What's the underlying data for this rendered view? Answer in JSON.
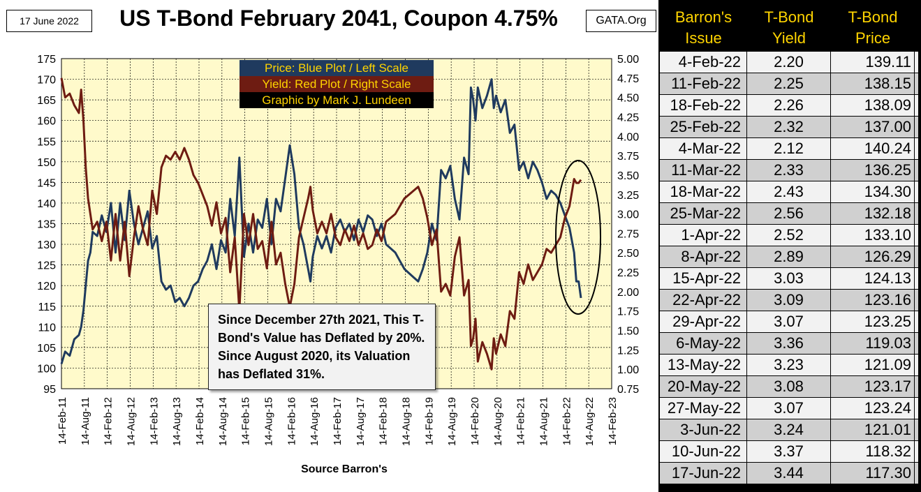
{
  "header": {
    "date": "17 June 2022",
    "title": "US T-Bond February 2041, Coupon 4.75%",
    "source_site": "GATA.Org"
  },
  "legend": {
    "price": "Price:  Blue Plot / Left Scale",
    "yield": "Yield:  Red Plot / Right Scale",
    "credit": "Graphic by Mark J. Lundeen"
  },
  "note": {
    "text": "Since December 27th 2021, This T-Bond's Value has Deflated by 20%.  Since August 2020, its Valuation has Deflated 31%."
  },
  "footer": {
    "source": "Source Barron's"
  },
  "colors": {
    "price": "#1f3a5e",
    "yield": "#6e1c12",
    "plot_bg": "#fffacb",
    "legend_text": "#ffd400"
  },
  "chart_data": {
    "type": "line",
    "title": "US T-Bond February 2041, Coupon 4.75%",
    "xlabel": "Source Barron's",
    "ylabel_left": "Price",
    "ylabel_right": "Yield",
    "ylim_left": [
      95,
      175
    ],
    "ylim_right": [
      0.75,
      5.0
    ],
    "y_ticks_left": [
      "95",
      "100",
      "105",
      "110",
      "115",
      "120",
      "125",
      "130",
      "135",
      "140",
      "145",
      "150",
      "155",
      "160",
      "165",
      "170",
      "175"
    ],
    "y_ticks_right": [
      "0.75",
      "1.00",
      "1.25",
      "1.50",
      "1.75",
      "2.00",
      "2.25",
      "2.50",
      "2.75",
      "3.00",
      "3.25",
      "3.50",
      "3.75",
      "4.00",
      "4.25",
      "4.50",
      "4.75",
      "5.00"
    ],
    "x_ticks": [
      "14-Feb-11",
      "14-Aug-11",
      "14-Feb-12",
      "14-Aug-12",
      "14-Feb-13",
      "14-Aug-13",
      "14-Feb-14",
      "14-Aug-14",
      "14-Feb-15",
      "14-Aug-15",
      "14-Feb-16",
      "14-Aug-16",
      "14-Feb-17",
      "14-Aug-17",
      "14-Feb-18",
      "14-Aug-18",
      "14-Feb-19",
      "14-Aug-19",
      "14-Feb-20",
      "14-Aug-20",
      "14-Feb-21",
      "14-Aug-21",
      "14-Feb-22",
      "14-Aug-22",
      "14-Feb-23"
    ],
    "x_range": [
      2011.12,
      2023.12
    ],
    "series": [
      {
        "name": "Price",
        "axis": "left",
        "x": [
          2011.12,
          2011.2,
          2011.3,
          2011.4,
          2011.5,
          2011.55,
          2011.6,
          2011.65,
          2011.7,
          2011.75,
          2011.8,
          2011.9,
          2012.0,
          2012.1,
          2012.2,
          2012.3,
          2012.4,
          2012.5,
          2012.6,
          2012.7,
          2012.8,
          2012.9,
          2013.0,
          2013.1,
          2013.2,
          2013.3,
          2013.4,
          2013.5,
          2013.6,
          2013.7,
          2013.8,
          2013.9,
          2014.0,
          2014.1,
          2014.2,
          2014.3,
          2014.4,
          2014.5,
          2014.6,
          2014.7,
          2014.8,
          2014.9,
          2015.0,
          2015.1,
          2015.2,
          2015.3,
          2015.4,
          2015.5,
          2015.6,
          2015.7,
          2015.8,
          2015.9,
          2016.0,
          2016.1,
          2016.2,
          2016.3,
          2016.4,
          2016.5,
          2016.55,
          2016.6,
          2016.7,
          2016.8,
          2016.9,
          2017.0,
          2017.1,
          2017.2,
          2017.3,
          2017.4,
          2017.5,
          2017.6,
          2017.7,
          2017.8,
          2017.9,
          2018.0,
          2018.1,
          2018.2,
          2018.3,
          2018.4,
          2018.5,
          2018.6,
          2018.7,
          2018.8,
          2018.9,
          2019.0,
          2019.1,
          2019.2,
          2019.3,
          2019.4,
          2019.5,
          2019.6,
          2019.7,
          2019.8,
          2019.9,
          2020.0,
          2020.05,
          2020.1,
          2020.15,
          2020.2,
          2020.3,
          2020.4,
          2020.5,
          2020.55,
          2020.6,
          2020.7,
          2020.8,
          2020.9,
          2021.0,
          2021.1,
          2021.2,
          2021.3,
          2021.4,
          2021.5,
          2021.6,
          2021.7,
          2021.8,
          2021.9,
          2022.0,
          2022.1,
          2022.2,
          2022.3,
          2022.35,
          2022.4,
          2022.45
        ],
        "values": [
          101,
          104,
          103,
          107,
          108,
          110,
          114,
          120,
          126,
          128,
          133,
          132,
          137,
          133,
          140,
          128,
          140,
          131,
          143,
          135,
          130,
          134,
          138,
          129,
          132,
          121,
          119,
          120,
          116,
          117,
          115,
          117,
          120,
          121,
          124,
          126,
          130,
          124,
          131,
          128,
          141,
          132,
          151,
          127,
          135,
          128,
          136,
          134,
          141,
          130,
          141,
          138,
          146,
          154,
          147,
          134,
          130,
          124,
          121,
          127,
          132,
          129,
          132,
          128,
          134,
          136,
          133,
          135,
          131,
          136,
          133,
          137,
          136,
          132,
          135,
          130,
          129,
          128,
          126,
          124,
          123,
          122,
          121,
          124,
          128,
          135,
          131,
          148,
          146,
          149,
          141,
          136,
          151,
          147,
          168,
          165,
          160,
          168,
          163,
          166,
          170,
          163,
          166,
          162,
          165,
          157,
          159,
          148,
          150,
          146,
          150,
          148,
          145,
          141,
          143,
          142,
          140,
          137,
          134,
          128,
          121,
          121,
          117
        ]
      },
      {
        "name": "Yield",
        "axis": "right",
        "x": [
          2011.12,
          2011.2,
          2011.3,
          2011.4,
          2011.5,
          2011.55,
          2011.6,
          2011.65,
          2011.7,
          2011.75,
          2011.8,
          2011.9,
          2012.0,
          2012.1,
          2012.2,
          2012.3,
          2012.4,
          2012.5,
          2012.6,
          2012.7,
          2012.8,
          2012.9,
          2013.0,
          2013.1,
          2013.2,
          2013.3,
          2013.4,
          2013.5,
          2013.6,
          2013.7,
          2013.8,
          2013.9,
          2014.0,
          2014.1,
          2014.2,
          2014.3,
          2014.4,
          2014.5,
          2014.6,
          2014.7,
          2014.8,
          2014.9,
          2015.0,
          2015.1,
          2015.2,
          2015.3,
          2015.4,
          2015.5,
          2015.6,
          2015.7,
          2015.8,
          2015.9,
          2016.0,
          2016.1,
          2016.2,
          2016.3,
          2016.4,
          2016.5,
          2016.55,
          2016.6,
          2016.7,
          2016.8,
          2016.9,
          2017.0,
          2017.1,
          2017.2,
          2017.3,
          2017.4,
          2017.5,
          2017.6,
          2017.7,
          2017.8,
          2017.9,
          2018.0,
          2018.1,
          2018.2,
          2018.3,
          2018.4,
          2018.5,
          2018.6,
          2018.7,
          2018.8,
          2018.9,
          2019.0,
          2019.1,
          2019.2,
          2019.3,
          2019.4,
          2019.5,
          2019.6,
          2019.7,
          2019.8,
          2019.9,
          2020.0,
          2020.05,
          2020.1,
          2020.15,
          2020.2,
          2020.3,
          2020.4,
          2020.5,
          2020.55,
          2020.6,
          2020.7,
          2020.8,
          2020.9,
          2021.0,
          2021.1,
          2021.2,
          2021.3,
          2021.4,
          2021.5,
          2021.6,
          2021.7,
          2021.8,
          2021.9,
          2022.0,
          2022.1,
          2022.2,
          2022.3,
          2022.35,
          2022.4,
          2022.45
        ],
        "values": [
          4.75,
          4.5,
          4.55,
          4.4,
          4.3,
          4.6,
          4.2,
          3.6,
          3.2,
          3.0,
          2.8,
          2.9,
          2.65,
          2.9,
          2.4,
          3.0,
          2.4,
          2.9,
          2.2,
          2.7,
          3.1,
          2.8,
          2.6,
          3.3,
          3.0,
          3.6,
          3.75,
          3.7,
          3.8,
          3.7,
          3.85,
          3.7,
          3.5,
          3.4,
          3.25,
          3.1,
          2.85,
          3.15,
          2.75,
          2.95,
          2.25,
          2.7,
          1.75,
          3.0,
          2.6,
          3.0,
          2.55,
          2.65,
          2.3,
          2.9,
          2.35,
          2.5,
          2.1,
          1.8,
          2.1,
          2.7,
          2.95,
          3.2,
          3.35,
          3.05,
          2.75,
          2.9,
          2.75,
          3.0,
          2.7,
          2.6,
          2.8,
          2.65,
          2.85,
          2.6,
          2.75,
          2.55,
          2.6,
          2.8,
          2.65,
          2.9,
          2.95,
          3.0,
          3.1,
          3.2,
          3.25,
          3.3,
          3.35,
          3.2,
          2.95,
          2.6,
          2.8,
          2.0,
          2.1,
          1.95,
          2.45,
          2.7,
          1.95,
          2.15,
          1.3,
          1.4,
          1.65,
          1.1,
          1.35,
          1.2,
          1.0,
          1.4,
          1.2,
          1.45,
          1.3,
          1.75,
          1.65,
          2.25,
          2.1,
          2.35,
          2.15,
          2.25,
          2.35,
          2.55,
          2.5,
          2.6,
          2.7,
          2.95,
          3.1,
          3.45,
          3.4,
          3.4,
          3.44
        ]
      }
    ]
  },
  "table": {
    "headers": [
      {
        "line1": "Barron's",
        "line2": "Issue"
      },
      {
        "line1": "T-Bond",
        "line2": "Yield"
      },
      {
        "line1": "T-Bond",
        "line2": "Price"
      }
    ],
    "rows": [
      {
        "issue": "4-Feb-22",
        "yield": "2.20",
        "price": "139.11"
      },
      {
        "issue": "11-Feb-22",
        "yield": "2.25",
        "price": "138.15"
      },
      {
        "issue": "18-Feb-22",
        "yield": "2.26",
        "price": "138.09"
      },
      {
        "issue": "25-Feb-22",
        "yield": "2.32",
        "price": "137.00"
      },
      {
        "issue": "4-Mar-22",
        "yield": "2.12",
        "price": "140.24"
      },
      {
        "issue": "11-Mar-22",
        "yield": "2.33",
        "price": "136.25"
      },
      {
        "issue": "18-Mar-22",
        "yield": "2.43",
        "price": "134.30"
      },
      {
        "issue": "25-Mar-22",
        "yield": "2.56",
        "price": "132.18"
      },
      {
        "issue": "1-Apr-22",
        "yield": "2.52",
        "price": "133.10"
      },
      {
        "issue": "8-Apr-22",
        "yield": "2.89",
        "price": "126.29"
      },
      {
        "issue": "15-Apr-22",
        "yield": "3.03",
        "price": "124.13"
      },
      {
        "issue": "22-Apr-22",
        "yield": "3.09",
        "price": "123.16"
      },
      {
        "issue": "29-Apr-22",
        "yield": "3.07",
        "price": "123.25"
      },
      {
        "issue": "6-May-22",
        "yield": "3.36",
        "price": "119.03"
      },
      {
        "issue": "13-May-22",
        "yield": "3.23",
        "price": "121.09"
      },
      {
        "issue": "20-May-22",
        "yield": "3.08",
        "price": "123.17"
      },
      {
        "issue": "27-May-22",
        "yield": "3.07",
        "price": "123.24"
      },
      {
        "issue": "3-Jun-22",
        "yield": "3.24",
        "price": "121.01"
      },
      {
        "issue": "10-Jun-22",
        "yield": "3.37",
        "price": "118.32"
      },
      {
        "issue": "17-Jun-22",
        "yield": "3.44",
        "price": "117.30"
      }
    ]
  }
}
